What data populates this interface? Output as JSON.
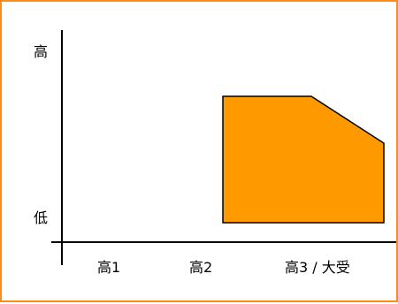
{
  "colors": {
    "frame_border": "#ff8c1a",
    "region_fill": "#ff9900",
    "axis": "#000000"
  },
  "y_axis": {
    "top_label": "高",
    "bottom_label": "低"
  },
  "x_axis": {
    "ticks": [
      "高1",
      "高2",
      "高3 / 大受"
    ]
  },
  "region": {
    "shape": "filled-polygon",
    "description_text": ""
  }
}
